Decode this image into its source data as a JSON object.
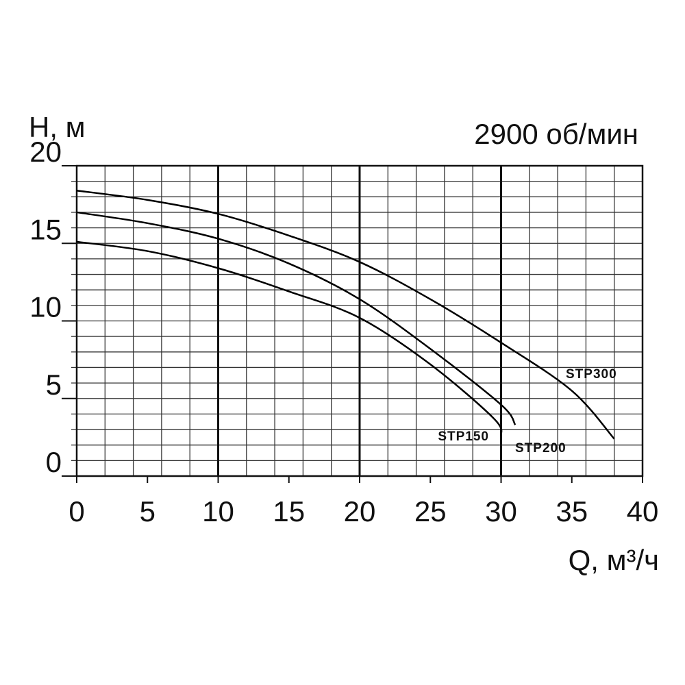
{
  "chart_data": {
    "type": "line",
    "y_label": "H, м",
    "x_label": "Q, м³/ч",
    "annotation": "2900 об/мин",
    "xlim": [
      0,
      40
    ],
    "xticks": [
      0,
      5,
      10,
      15,
      20,
      25,
      30,
      35,
      40
    ],
    "ylim": [
      0,
      20
    ],
    "yticks": [
      0,
      5,
      10,
      15,
      20
    ],
    "x_minor_grid": [
      0,
      2,
      4,
      6,
      8,
      10,
      12,
      14,
      16,
      18,
      20,
      22,
      24,
      26,
      28,
      30,
      32,
      34,
      36,
      38,
      40
    ],
    "y_minor_grid": [
      0,
      1,
      2,
      3,
      4,
      5,
      6,
      7,
      8,
      9,
      10,
      11,
      12,
      13,
      14,
      15,
      16,
      17,
      18,
      19,
      20
    ],
    "x_major_grid": [
      10,
      20,
      30
    ],
    "grid": true,
    "series": [
      {
        "name": "STP300",
        "color": "#000000",
        "x": [
          0,
          5,
          10,
          15,
          20,
          25,
          30,
          35,
          38
        ],
        "values": [
          18.4,
          17.8,
          16.9,
          15.5,
          13.8,
          11.4,
          8.6,
          5.5,
          2.4
        ]
      },
      {
        "name": "STP200",
        "color": "#000000",
        "x": [
          0,
          5,
          10,
          15,
          20,
          25,
          30,
          31
        ],
        "values": [
          17.0,
          16.3,
          15.3,
          13.7,
          11.4,
          8.2,
          4.6,
          3.3
        ]
      },
      {
        "name": "STP150",
        "color": "#000000",
        "x": [
          0,
          5,
          10,
          15,
          20,
          25,
          29.5,
          30
        ],
        "values": [
          15.1,
          14.5,
          13.4,
          11.9,
          10.2,
          7.2,
          3.7,
          2.6
        ]
      }
    ]
  }
}
